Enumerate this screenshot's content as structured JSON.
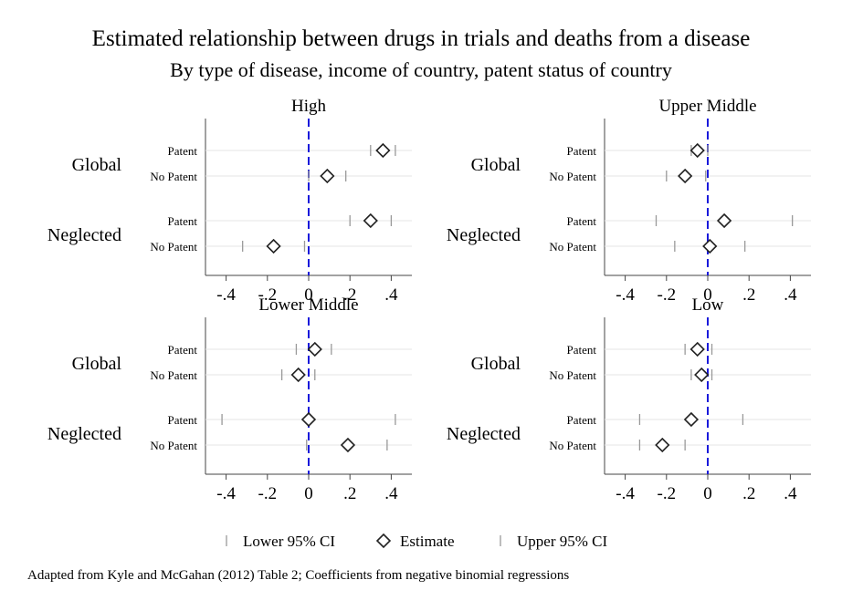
{
  "title": "Estimated relationship between drugs in trials and deaths from a disease",
  "subtitle": "By type of disease, income of country, patent status of country",
  "note": "Adapted from Kyle and McGahan (2012) Table 2; Coefficients from negative binomial regressions",
  "legend": {
    "position": "bottom",
    "items": [
      {
        "label": "Lower 95% CI",
        "marker": "tick",
        "color": "#999999"
      },
      {
        "label": "Estimate",
        "marker": "hollow-diamond",
        "color": "#222222"
      },
      {
        "label": "Upper 95% CI",
        "marker": "tick",
        "color": "#999999"
      }
    ]
  },
  "colors": {
    "reference_line": "#1a1adb",
    "ci_tick": "#999999",
    "estimate": "#222222",
    "row_line": "#e6e6e6",
    "axis": "#444444"
  },
  "chart_data": {
    "type": "scatter",
    "style": "coefficient-plot",
    "x_range": [
      -0.5,
      0.5
    ],
    "x_ticks": [
      -0.4,
      -0.2,
      0,
      0.2,
      0.4
    ],
    "x_tick_labels": [
      "-.4",
      "-.2",
      "0",
      ".2",
      ".4"
    ],
    "reference_x": 0,
    "grid": false,
    "groups": [
      "Global",
      "Neglected"
    ],
    "rows": [
      "Patent",
      "No Patent"
    ],
    "panels": [
      {
        "title": "High",
        "points": [
          {
            "group": "Global",
            "row": "Patent",
            "estimate": 0.36,
            "lower": 0.3,
            "upper": 0.42
          },
          {
            "group": "Global",
            "row": "No Patent",
            "estimate": 0.09,
            "lower": 0.0,
            "upper": 0.18
          },
          {
            "group": "Neglected",
            "row": "Patent",
            "estimate": 0.3,
            "lower": 0.2,
            "upper": 0.4
          },
          {
            "group": "Neglected",
            "row": "No Patent",
            "estimate": -0.17,
            "lower": -0.32,
            "upper": -0.02
          }
        ]
      },
      {
        "title": "Upper Middle",
        "points": [
          {
            "group": "Global",
            "row": "Patent",
            "estimate": -0.05,
            "lower": -0.08,
            "upper": 0.0
          },
          {
            "group": "Global",
            "row": "No Patent",
            "estimate": -0.11,
            "lower": -0.2,
            "upper": -0.01
          },
          {
            "group": "Neglected",
            "row": "Patent",
            "estimate": 0.08,
            "lower": -0.25,
            "upper": 0.41
          },
          {
            "group": "Neglected",
            "row": "No Patent",
            "estimate": 0.01,
            "lower": -0.16,
            "upper": 0.18
          }
        ]
      },
      {
        "title": "Lower Middle",
        "points": [
          {
            "group": "Global",
            "row": "Patent",
            "estimate": 0.03,
            "lower": -0.06,
            "upper": 0.11
          },
          {
            "group": "Global",
            "row": "No Patent",
            "estimate": -0.05,
            "lower": -0.13,
            "upper": 0.03
          },
          {
            "group": "Neglected",
            "row": "Patent",
            "estimate": 0.0,
            "lower": -0.42,
            "upper": 0.42
          },
          {
            "group": "Neglected",
            "row": "No Patent",
            "estimate": 0.19,
            "lower": -0.01,
            "upper": 0.38
          }
        ]
      },
      {
        "title": "Low",
        "points": [
          {
            "group": "Global",
            "row": "Patent",
            "estimate": -0.05,
            "lower": -0.11,
            "upper": 0.02
          },
          {
            "group": "Global",
            "row": "No Patent",
            "estimate": -0.03,
            "lower": -0.08,
            "upper": 0.02
          },
          {
            "group": "Neglected",
            "row": "Patent",
            "estimate": -0.08,
            "lower": -0.33,
            "upper": 0.17
          },
          {
            "group": "Neglected",
            "row": "No Patent",
            "estimate": -0.22,
            "lower": -0.33,
            "upper": -0.11
          }
        ]
      }
    ]
  }
}
